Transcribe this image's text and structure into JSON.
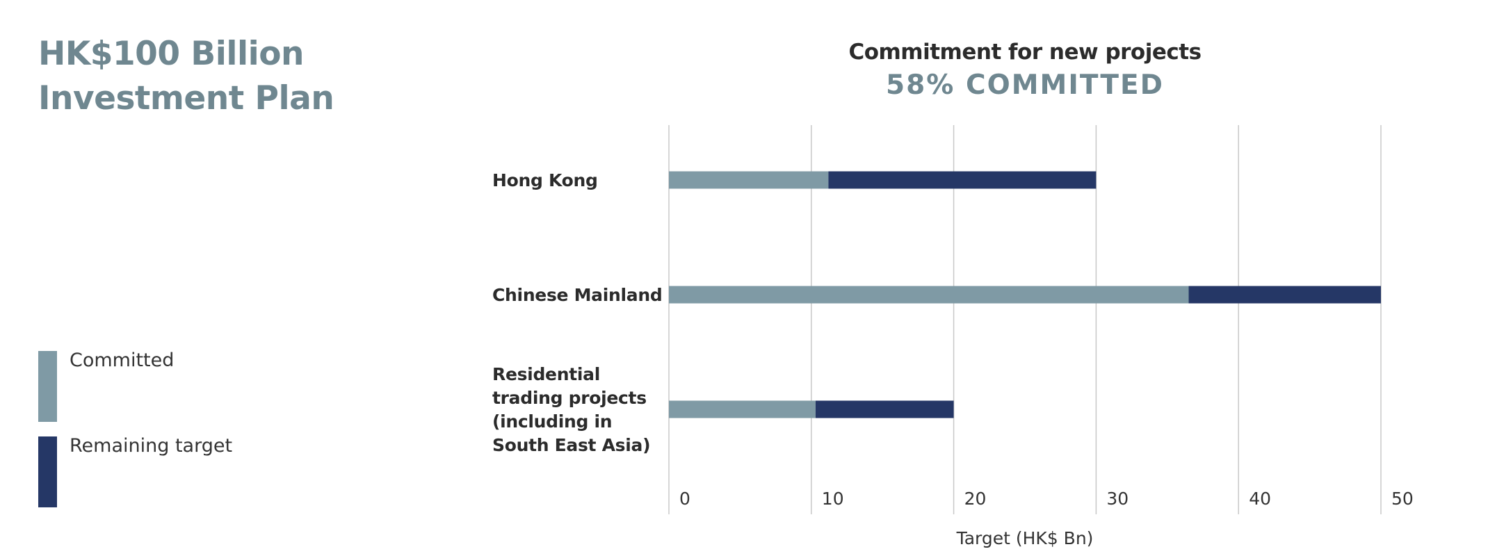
{
  "page": {
    "title_line1": "HK$100 Billion",
    "title_line2": "Investment Plan"
  },
  "legend": [
    {
      "label": "Committed",
      "color": "#7f9aa5"
    },
    {
      "label": "Remaining target",
      "color": "#253766"
    }
  ],
  "chart_data": {
    "type": "bar",
    "orientation": "horizontal",
    "stacked": true,
    "title": "Commitment for new projects",
    "subtitle": "58% COMMITTED",
    "xlabel": "Target (HK$ Bn)",
    "ylabel": "",
    "xlim": [
      0,
      50
    ],
    "xticks": [
      0,
      10,
      20,
      30,
      40,
      50
    ],
    "grid": true,
    "legend_position": "left",
    "categories": [
      [
        "Hong Kong"
      ],
      [
        "Chinese Mainland"
      ],
      [
        "Residential",
        "trading projects",
        "(including in",
        "South East Asia)"
      ]
    ],
    "series": [
      {
        "name": "Committed",
        "color": "#7f9aa5",
        "values": [
          11.2,
          36.5,
          10.3
        ]
      },
      {
        "name": "Remaining target",
        "color": "#253766",
        "values": [
          18.8,
          13.5,
          9.7
        ]
      }
    ]
  }
}
